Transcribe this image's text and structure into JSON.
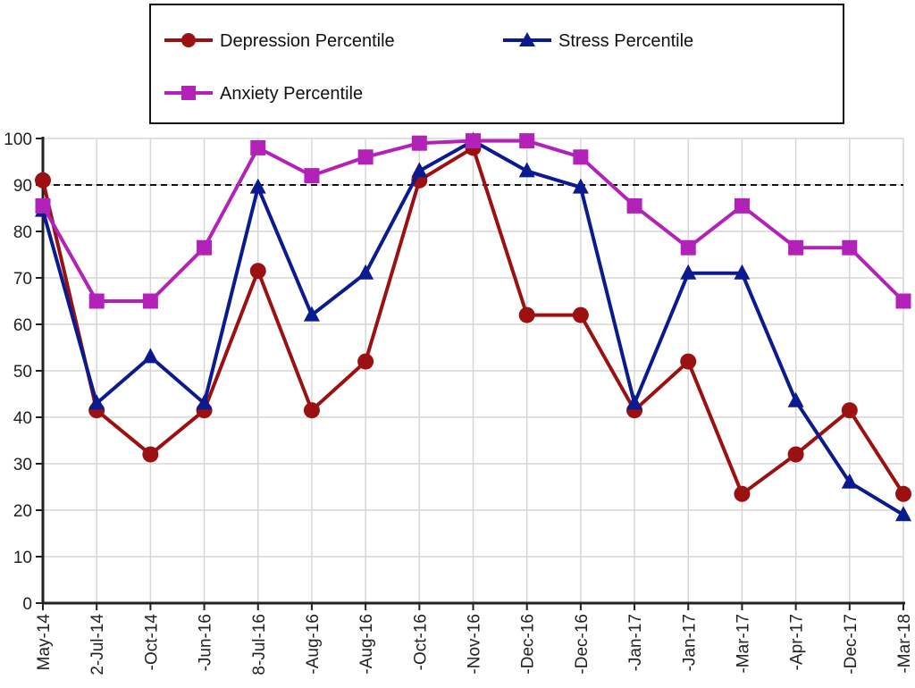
{
  "colors": {
    "depression": "#9b1111",
    "stress": "#0b1a8f",
    "anxiety": "#b222b8",
    "grid": "#d6d6d6",
    "threshold": "#111111"
  },
  "chart_data": {
    "type": "line",
    "title": "",
    "xlabel": "",
    "ylabel": "",
    "x": [
      "May-14",
      "2-Jul-14",
      "-Oct-14",
      "-Jun-16",
      "8-Jul-16",
      "-Aug-16",
      "-Aug-16",
      "-Oct-16",
      "-Nov-16",
      "-Dec-16",
      "-Dec-16",
      "-Jan-17",
      "-Jan-17",
      "-Mar-17",
      "-Apr-17",
      "-Dec-17",
      "-Mar-18"
    ],
    "ylim": [
      0,
      100
    ],
    "yticks": [
      0,
      10,
      20,
      30,
      40,
      50,
      60,
      70,
      80,
      90,
      100
    ],
    "grid": true,
    "threshold": 90,
    "legend_position": "top",
    "series": [
      {
        "name": "Depression Percentile",
        "color_key": "depression",
        "marker": "circle",
        "values": [
          91,
          41.5,
          32,
          41.5,
          71.5,
          41.5,
          52,
          91,
          98,
          62,
          62,
          41.5,
          52,
          23.5,
          32,
          41.5,
          23.5
        ]
      },
      {
        "name": "Stress Percentile",
        "color_key": "stress",
        "marker": "triangle",
        "values": [
          84.5,
          43,
          53,
          43,
          89.5,
          62,
          71,
          93,
          99.5,
          93,
          89.5,
          43,
          71,
          71,
          43.5,
          26,
          19
        ]
      },
      {
        "name": "Anxiety Percentile",
        "color_key": "anxiety",
        "marker": "square",
        "values": [
          85.5,
          65,
          65,
          76.5,
          98,
          92,
          96,
          99,
          99.5,
          99.5,
          96,
          85.5,
          76.5,
          85.5,
          76.5,
          76.5,
          65
        ]
      }
    ]
  }
}
